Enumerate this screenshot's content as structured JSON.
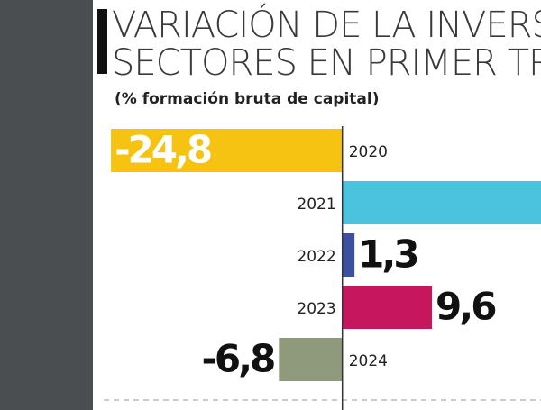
{
  "chart_data": {
    "type": "bar",
    "title_lines": [
      "VARIACIÓN DE LA INVERSI",
      "SECTORES EN PRIMER TRI"
    ],
    "subtitle": "(% formación bruta de capital)",
    "categories": [
      "2020",
      "2021",
      "2022",
      "2023",
      "2024"
    ],
    "values": [
      -24.8,
      22,
      1.3,
      9.6,
      -6.8
    ],
    "value_labels": [
      "-24,8",
      null,
      "1,3",
      "9,6",
      "-6,8"
    ],
    "colors": [
      "#f6c313",
      "#4bc3df",
      "#3e4f9f",
      "#c6165e",
      "#8e9a7b"
    ],
    "xlim": [
      -25,
      21
    ]
  }
}
